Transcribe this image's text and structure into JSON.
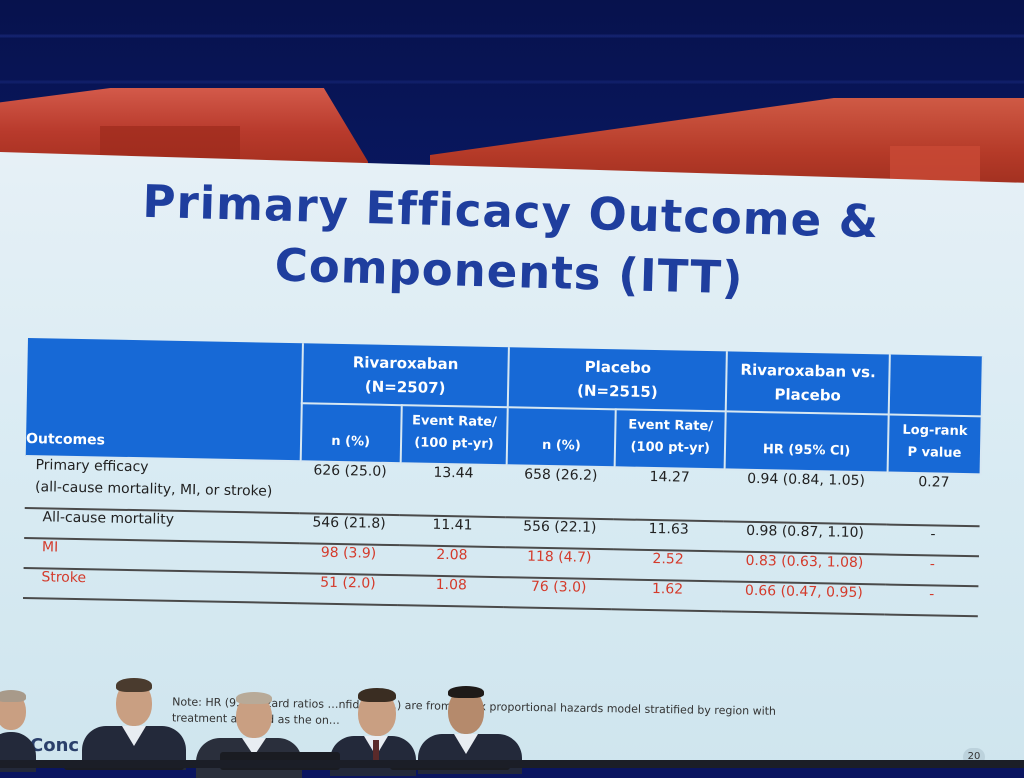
{
  "slide": {
    "title_line1": "Primary Efficacy Outcome &",
    "title_line2": "Components (ITT)"
  },
  "table": {
    "header_outcomes": "Outcomes",
    "groups": [
      {
        "name": "Rivaroxaban",
        "n_label": "(N=2507)"
      },
      {
        "name": "Placebo",
        "n_label": "(N=2515)"
      }
    ],
    "comparison_header_line1": "Rivaroxaban vs.",
    "comparison_header_line2": "Placebo",
    "subheaders": {
      "n_pct": "n (%)",
      "event_rate_line1": "Event Rate/",
      "event_rate_line2": "(100 pt-yr)",
      "hr": "HR (95% CI)",
      "p_line1": "Log-rank",
      "p_line2": "P value"
    },
    "rows": [
      {
        "name": "Primary efficacy",
        "sub": "(all-cause mortality, MI, or stroke)",
        "riva_n": "626 (25.0)",
        "riva_rate": "13.44",
        "plac_n": "658 (26.2)",
        "plac_rate": "14.27",
        "hr": "0.94 (0.84, 1.05)",
        "p": "0.27"
      },
      {
        "name": "All-cause mortality",
        "riva_n": "546 (21.8)",
        "riva_rate": "11.41",
        "plac_n": "556 (22.1)",
        "plac_rate": "11.63",
        "hr": "0.98 (0.87, 1.10)",
        "p": "-"
      },
      {
        "name": "MI",
        "riva_n": "98 (3.9)",
        "riva_rate": "2.08",
        "plac_n": "118 (4.7)",
        "plac_rate": "2.52",
        "hr": "0.83 (0.63, 1.08)",
        "p": "-"
      },
      {
        "name": "Stroke",
        "riva_n": "51 (2.0)",
        "riva_rate": "1.08",
        "plac_n": "76 (3.0)",
        "plac_rate": "1.62",
        "hr": "0.66 (0.47, 0.95)",
        "p": "-"
      }
    ]
  },
  "footnote": {
    "line1": "Note: HR (9… Hazard ratios …nfidence…) are from a Cox proportional hazards model stratified by region with",
    "line2": "treatment a… …rd as the on…"
  },
  "conclusion_label": "Conc",
  "page_number": "20",
  "colors": {
    "header_blue": "#1769d6",
    "title_blue": "#1f3e9e",
    "highlight_red": "#d43a2b",
    "slide_bg": "#dcecf4"
  }
}
